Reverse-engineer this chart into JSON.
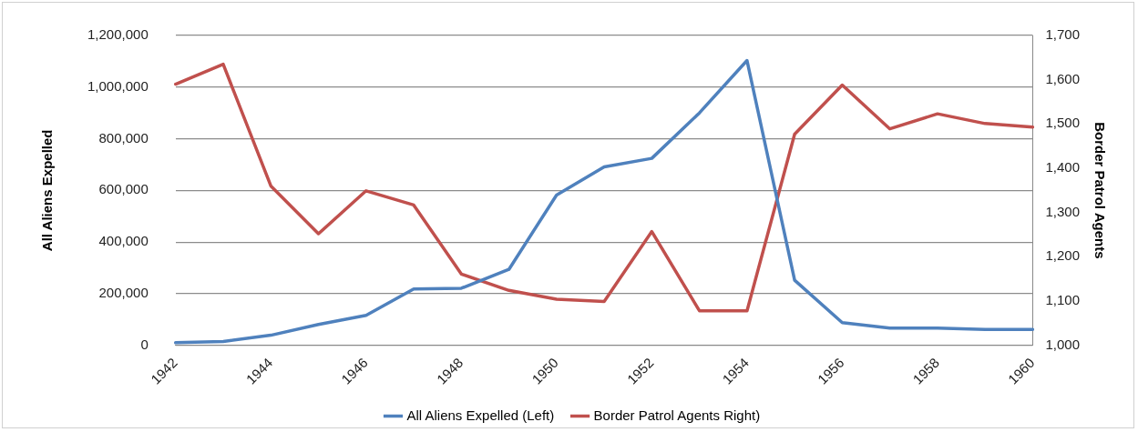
{
  "chart_data": {
    "type": "line",
    "categories": [
      "1942",
      null,
      "1944",
      null,
      "1946",
      null,
      "1948",
      null,
      "1950",
      null,
      "1952",
      null,
      "1954",
      null,
      "1956",
      null,
      "1958",
      null,
      "1960"
    ],
    "ylabel": "All Aliens Expelled",
    "y2label": "Border Patrol Agents",
    "series": [
      {
        "name": "All Aliens Expelled (Left)",
        "color": "#4f81bd",
        "values": [
          10000,
          15000,
          39000,
          81000,
          116000,
          218000,
          221000,
          294000,
          582000,
          691000,
          724000,
          900000,
          1103000,
          252000,
          88000,
          67000,
          67000,
          61000,
          61000
        ]
      },
      {
        "name": "Border Patrol Agents Right)",
        "color": "#c0504d",
        "axis": "y2",
        "values": [
          1590,
          1635,
          1360,
          1252,
          1349,
          1317,
          1161,
          1124,
          1104,
          1099,
          1257,
          1078,
          1078,
          1477,
          1588,
          1489,
          1523,
          1501,
          1493
        ]
      }
    ],
    "ylim": [
      0,
      1200000
    ],
    "yticks": [
      0,
      {
        "value": 200000,
        "label": "200,000"
      },
      {
        "value": 400000,
        "label": "400,000"
      },
      {
        "value": 600000,
        "label": "600,000"
      },
      {
        "value": 800000,
        "label": "800,000"
      },
      {
        "value": 1000000,
        "label": "1,000,000"
      },
      {
        "value": 1200000,
        "label": "1,200,000"
      }
    ],
    "y2lim": [
      1000,
      1700
    ],
    "y2ticks": [
      {
        "value": 1000,
        "label": "1,000"
      },
      {
        "value": 1100,
        "label": "1,100"
      },
      {
        "value": 1200,
        "label": "1,200"
      },
      {
        "value": 1300,
        "label": "1,300"
      },
      {
        "value": 1400,
        "label": "1,400"
      },
      {
        "value": 1500,
        "label": "1,500"
      },
      {
        "value": 1600,
        "label": "1,600"
      },
      {
        "value": 1700,
        "label": "1,700"
      }
    ],
    "grid": "y",
    "legend": "bottom",
    "marker": "none",
    "line_style": "solid"
  }
}
